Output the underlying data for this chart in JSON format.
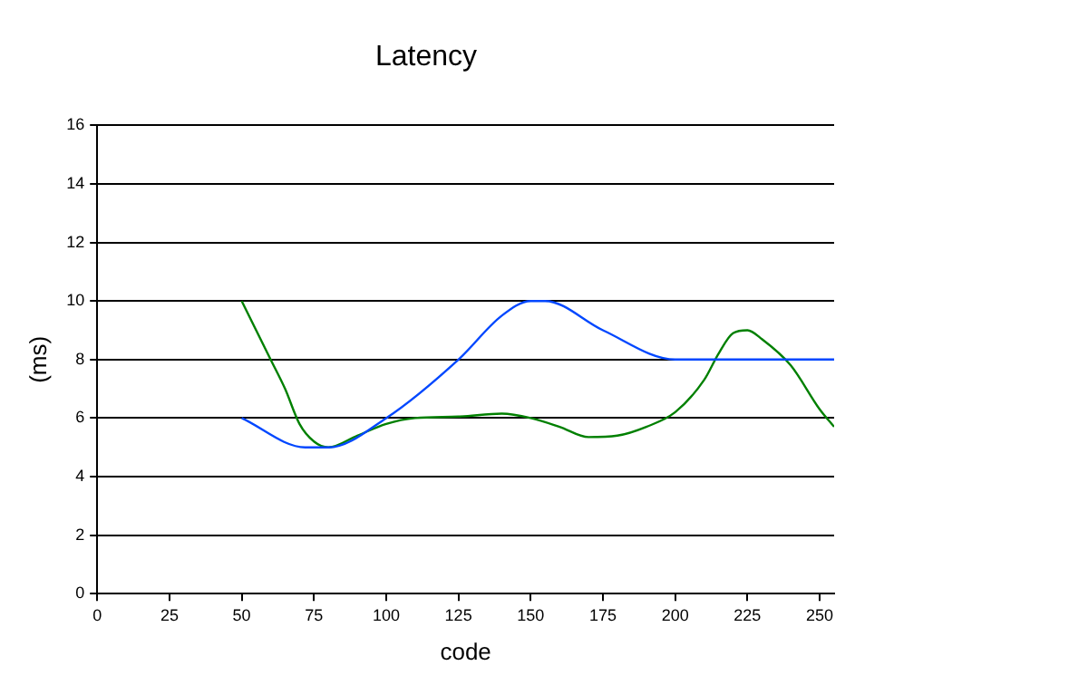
{
  "chart_data": {
    "type": "line",
    "title": "Latency",
    "xlabel": "code",
    "ylabel": "(ms)",
    "xlim": [
      0,
      255
    ],
    "xticks": [
      0,
      25,
      50,
      75,
      100,
      125,
      150,
      175,
      200,
      225,
      250
    ],
    "ylim": [
      0,
      16
    ],
    "yticks": [
      0,
      2,
      4,
      6,
      8,
      10,
      12,
      14,
      16
    ],
    "grid": "y",
    "legend": false,
    "marker": "none",
    "line_style": "solid",
    "series": [
      {
        "color": "#0047ff",
        "x": [
          50,
          72,
          80,
          100,
          125,
          140,
          150,
          155,
          175,
          200,
          255
        ],
        "values": [
          6,
          5,
          5,
          6,
          8,
          9.5,
          10,
          10,
          9,
          8,
          8
        ]
      },
      {
        "color": "#008000",
        "x": [
          50,
          55,
          60,
          65,
          70,
          75,
          80,
          90,
          100,
          110,
          125,
          140,
          150,
          160,
          170,
          180,
          190,
          200,
          210,
          215,
          220,
          225,
          230,
          240,
          250,
          255
        ],
        "values": [
          10,
          9,
          8,
          7,
          5.8,
          5.2,
          5,
          5.4,
          5.8,
          6,
          6.05,
          6.15,
          6,
          5.7,
          5.35,
          5.4,
          5.7,
          6.2,
          7.3,
          8.2,
          8.9,
          9,
          8.7,
          7.8,
          6.3,
          5.7
        ]
      }
    ]
  }
}
